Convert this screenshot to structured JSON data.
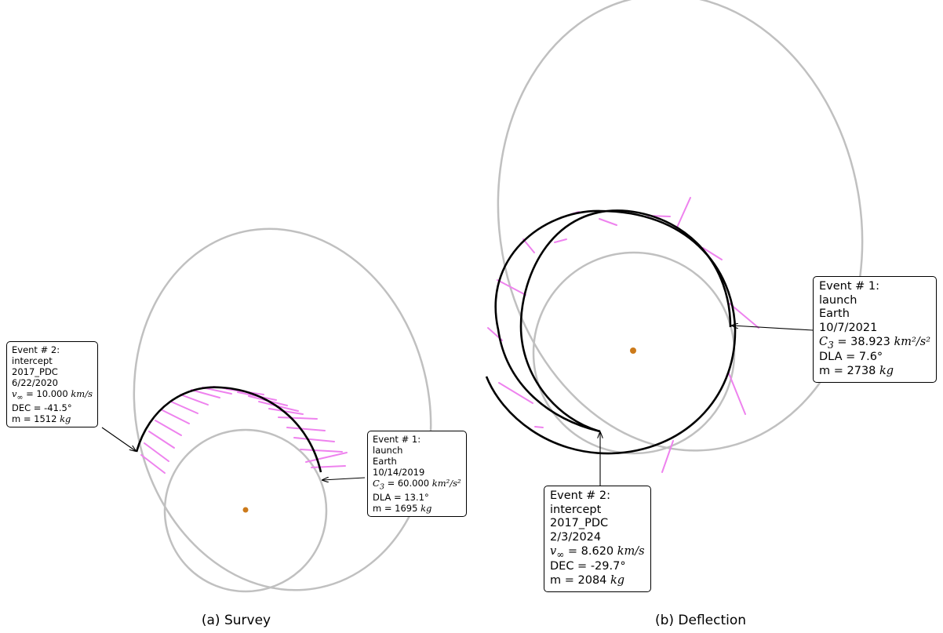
{
  "colors": {
    "orbit": "#c0c0c0",
    "transfer": "#000000",
    "thrust": "#ee82ee",
    "sun": "#cc7a1a"
  },
  "panels": [
    {
      "caption": "(a) Survey",
      "events": [
        {
          "title": "Event # 1:",
          "type": "launch",
          "body": "Earth",
          "date": "10/14/2019",
          "metric_sym": "C",
          "metric_sub": "3",
          "metric_value": "= 60.000",
          "metric_unit": "km²/s²",
          "angle_label": "DLA = 13.1°",
          "mass": "m = 1695",
          "mass_unit": "kg"
        },
        {
          "title": "Event # 2:",
          "type": "intercept",
          "body": "2017_PDC",
          "date": "6/22/2020",
          "metric_sym": "v",
          "metric_sub": "∞",
          "metric_value": "= 10.000",
          "metric_unit": "km/s",
          "angle_label": "DEC = -41.5°",
          "mass": "m = 1512",
          "mass_unit": "kg"
        }
      ]
    },
    {
      "caption": "(b) Deflection",
      "events": [
        {
          "title": "Event # 1:",
          "type": "launch",
          "body": "Earth",
          "date": "10/7/2021",
          "metric_sym": "C",
          "metric_sub": "3",
          "metric_value": "= 38.923",
          "metric_unit": "km²/s²",
          "angle_label": "DLA = 7.6°",
          "mass": "m = 2738",
          "mass_unit": "kg"
        },
        {
          "title": "Event # 2:",
          "type": "intercept",
          "body": "2017_PDC",
          "date": "2/3/2024",
          "metric_sym": "v",
          "metric_sub": "∞",
          "metric_value": "= 8.620",
          "metric_unit": "km/s",
          "angle_label": "DEC = -29.7°",
          "mass": "m = 2084",
          "mass_unit": "kg"
        }
      ]
    }
  ]
}
